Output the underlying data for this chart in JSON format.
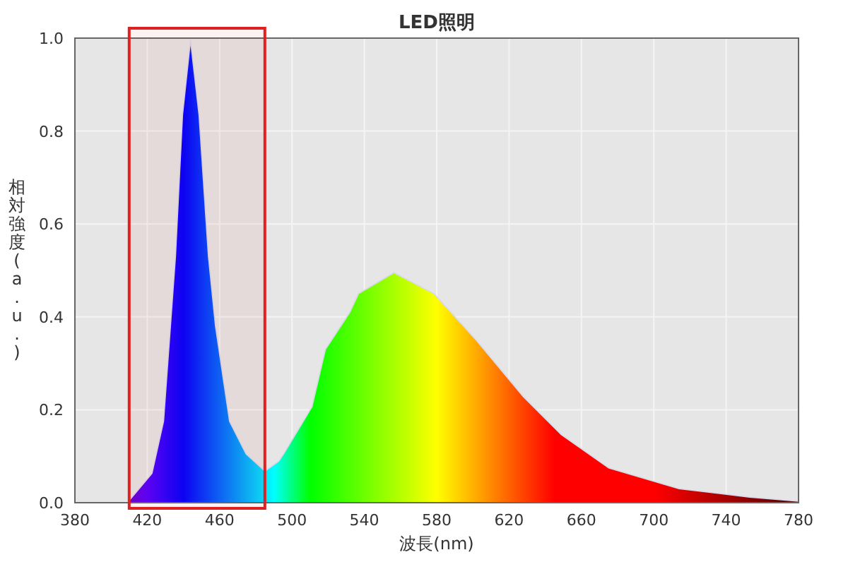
{
  "chart_data": {
    "type": "area",
    "title": "LED照明",
    "xlabel": "波長(nm)",
    "ylabel": "相対強度(a.u.)",
    "x": [
      409,
      422.6,
      429,
      435.6,
      439.5,
      443.9,
      448.6,
      453.8,
      457.7,
      465.5,
      474.6,
      485,
      492.6,
      495.4,
      511,
      518.5,
      532,
      536.8,
      556.3,
      578.4,
      601.8,
      627.9,
      649,
      675,
      714,
      753,
      780
    ],
    "values": [
      0,
      0.063,
      0.175,
      0.53,
      0.835,
      0.995,
      0.835,
      0.53,
      0.38,
      0.175,
      0.105,
      0.068,
      0.089,
      0.105,
      0.206,
      0.33,
      0.41,
      0.45,
      0.495,
      0.45,
      0.35,
      0.228,
      0.146,
      0.075,
      0.03,
      0.012,
      0.003
    ],
    "xlim": [
      380,
      780
    ],
    "xticks": [
      380,
      420,
      460,
      500,
      540,
      580,
      620,
      660,
      700,
      740,
      780
    ],
    "ylim": [
      0,
      1
    ],
    "yticks": [
      {
        "value": 0,
        "label": "0.0"
      },
      0.2,
      0.4,
      0.6,
      0.8,
      {
        "value": 1,
        "label": "1.0"
      }
    ],
    "grid": true,
    "bands": [
      {
        "axis": "x",
        "from": 410,
        "to": 485,
        "color": "#e02020"
      }
    ]
  }
}
